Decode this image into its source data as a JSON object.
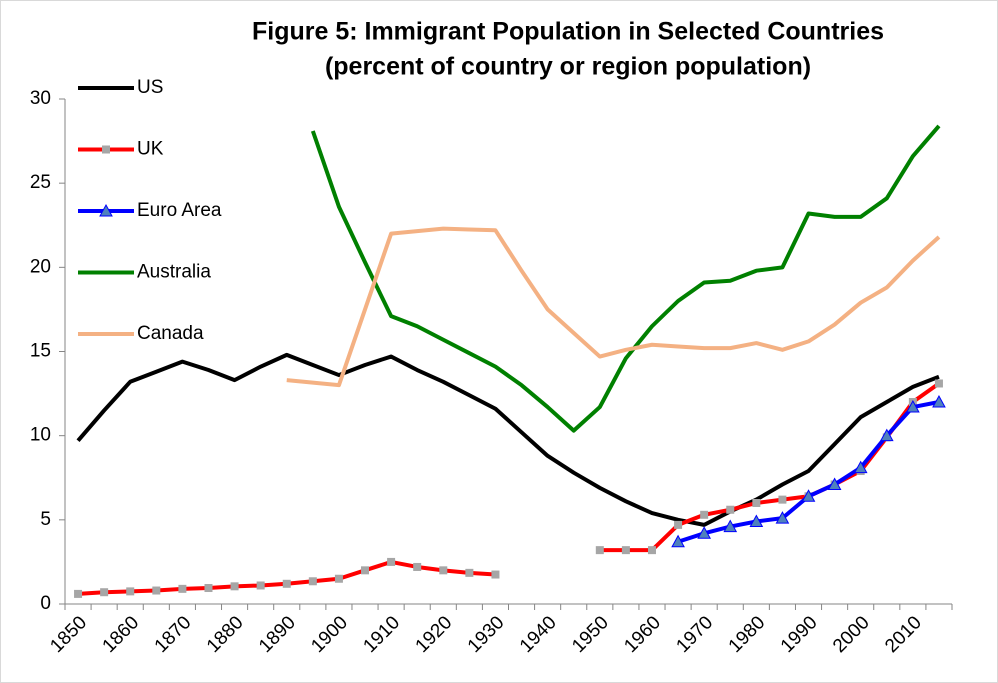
{
  "chart_data": {
    "type": "line",
    "title": [
      "Figure 5: Immigrant Population in Selected Countries",
      "(percent of country or region population)"
    ],
    "categories": [
      "1850",
      null,
      "1860",
      null,
      "1870",
      null,
      "1880",
      null,
      "1890",
      null,
      "1900",
      null,
      "1910",
      null,
      "1920",
      null,
      "1930",
      null,
      "1940",
      null,
      "1950",
      null,
      "1960",
      null,
      "1970",
      null,
      "1980",
      null,
      "1990",
      null,
      "2000",
      null,
      "2010",
      null
    ],
    "ylim": [
      0,
      30
    ],
    "yticks": [
      0,
      5,
      10,
      15,
      20,
      25,
      30
    ],
    "grid": false,
    "legend": "upper-left",
    "series": [
      {
        "name": "US",
        "color": "#000000",
        "marker": null,
        "values": [
          9.7,
          11.5,
          13.2,
          13.8,
          14.4,
          13.9,
          13.3,
          14.1,
          14.8,
          14.2,
          13.6,
          14.2,
          14.7,
          13.9,
          13.2,
          12.4,
          11.6,
          10.2,
          8.8,
          7.8,
          6.9,
          6.1,
          5.4,
          5.0,
          4.7,
          5.5,
          6.2,
          7.1,
          7.9,
          9.5,
          11.1,
          12.0,
          12.9,
          13.5
        ]
      },
      {
        "name": "UK",
        "color": "#ff0000",
        "marker": "square",
        "marker_color": "#a6a6a6",
        "values": [
          0.6,
          0.7,
          0.75,
          0.8,
          0.9,
          0.95,
          1.05,
          1.1,
          1.2,
          1.35,
          1.5,
          2.0,
          2.5,
          2.2,
          2.0,
          1.85,
          1.75,
          null,
          null,
          null,
          3.2,
          3.2,
          3.2,
          4.7,
          5.3,
          5.6,
          6.0,
          6.2,
          6.4,
          7.1,
          7.9,
          9.9,
          12.0,
          13.1
        ]
      },
      {
        "name": "Euro Area",
        "color": "#0000ff",
        "marker": "triangle",
        "marker_color": "#4f81bd",
        "values": [
          null,
          null,
          null,
          null,
          null,
          null,
          null,
          null,
          null,
          null,
          null,
          null,
          null,
          null,
          null,
          null,
          null,
          null,
          null,
          null,
          null,
          null,
          null,
          3.7,
          4.2,
          4.6,
          4.9,
          5.1,
          6.4,
          7.1,
          8.1,
          10.0,
          11.7,
          12.0
        ]
      },
      {
        "name": "Australia",
        "color": "#008000",
        "marker": null,
        "values": [
          null,
          null,
          null,
          null,
          null,
          null,
          null,
          null,
          null,
          28.1,
          23.6,
          20.3,
          17.1,
          16.5,
          15.7,
          14.9,
          14.1,
          13.0,
          11.7,
          10.3,
          11.7,
          14.6,
          16.5,
          18.0,
          19.1,
          19.2,
          19.8,
          20.0,
          23.2,
          23.0,
          23.0,
          24.1,
          26.6,
          28.4
        ]
      },
      {
        "name": "Canada",
        "color": "#f4b183",
        "marker": null,
        "values": [
          null,
          null,
          null,
          null,
          null,
          null,
          null,
          null,
          13.3,
          13.15,
          13.0,
          17.5,
          22.0,
          22.15,
          22.3,
          22.25,
          22.2,
          19.8,
          17.5,
          16.1,
          14.7,
          15.1,
          15.4,
          15.3,
          15.2,
          15.2,
          15.5,
          15.1,
          15.6,
          16.6,
          17.9,
          18.8,
          20.4,
          21.8
        ]
      }
    ]
  }
}
